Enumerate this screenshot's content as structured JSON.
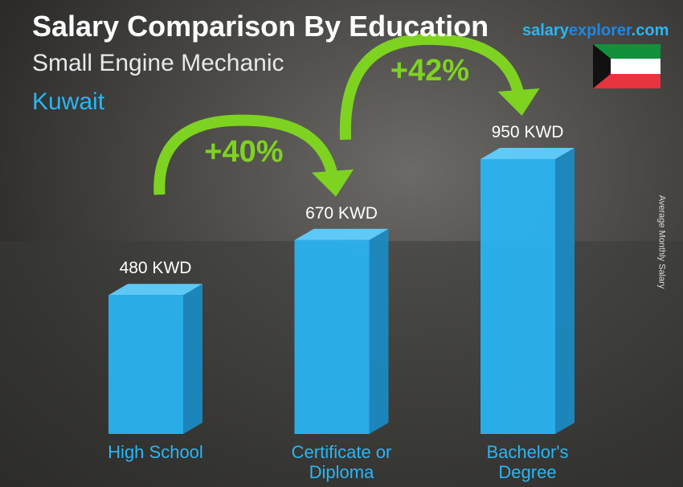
{
  "chart_data": {
    "type": "bar",
    "title": "Salary Comparison By Education",
    "subtitle": "Small Engine Mechanic",
    "location": "Kuwait",
    "logo": [
      "salary",
      "explorer",
      ".com"
    ],
    "ylabel": "Average Monthly Salary",
    "categories": [
      "High School",
      "Certificate or Diploma",
      "Bachelor's Degree"
    ],
    "values": [
      480,
      670,
      950
    ],
    "value_labels": [
      "480 KWD",
      "670 KWD",
      "950 KWD"
    ],
    "color": "#29b6f6",
    "annotations": [
      "+40%",
      "+42%"
    ]
  }
}
